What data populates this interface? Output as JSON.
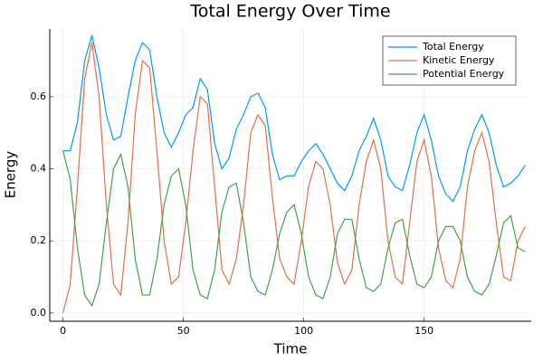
{
  "chart_data": {
    "type": "line",
    "title": "Total Energy Over Time",
    "x_label": "Time",
    "y_label": "Energy",
    "x": [
      0,
      3,
      6,
      9,
      12,
      15,
      18,
      21,
      24,
      27,
      30,
      33,
      36,
      39,
      42,
      45,
      48,
      51,
      54,
      57,
      60,
      63,
      66,
      69,
      72,
      75,
      78,
      81,
      84,
      87,
      90,
      93,
      96,
      99,
      102,
      105,
      108,
      111,
      114,
      117,
      120,
      123,
      126,
      129,
      132,
      135,
      138,
      141,
      144,
      147,
      150,
      153,
      156,
      159,
      162,
      165,
      168,
      171,
      174,
      177,
      180,
      183,
      186,
      189,
      192
    ],
    "series": [
      {
        "name": "Total Energy",
        "color": "#009afa",
        "values": [
          0.45,
          0.45,
          0.53,
          0.7,
          0.77,
          0.68,
          0.55,
          0.48,
          0.49,
          0.6,
          0.7,
          0.75,
          0.73,
          0.6,
          0.5,
          0.46,
          0.5,
          0.55,
          0.57,
          0.65,
          0.62,
          0.47,
          0.4,
          0.43,
          0.51,
          0.55,
          0.6,
          0.61,
          0.57,
          0.44,
          0.37,
          0.38,
          0.38,
          0.42,
          0.45,
          0.47,
          0.44,
          0.4,
          0.36,
          0.34,
          0.38,
          0.45,
          0.49,
          0.54,
          0.48,
          0.38,
          0.35,
          0.34,
          0.41,
          0.5,
          0.55,
          0.48,
          0.38,
          0.33,
          0.31,
          0.35,
          0.45,
          0.51,
          0.55,
          0.5,
          0.41,
          0.35,
          0.36,
          0.38,
          0.41
        ]
      },
      {
        "name": "Kinetic Energy",
        "color": "#e36f47",
        "values": [
          0.0,
          0.08,
          0.35,
          0.65,
          0.75,
          0.6,
          0.3,
          0.08,
          0.05,
          0.25,
          0.55,
          0.7,
          0.68,
          0.45,
          0.2,
          0.08,
          0.1,
          0.25,
          0.45,
          0.6,
          0.58,
          0.35,
          0.12,
          0.08,
          0.15,
          0.3,
          0.5,
          0.55,
          0.52,
          0.32,
          0.15,
          0.1,
          0.08,
          0.2,
          0.35,
          0.42,
          0.4,
          0.3,
          0.14,
          0.08,
          0.12,
          0.3,
          0.42,
          0.48,
          0.4,
          0.2,
          0.1,
          0.08,
          0.25,
          0.42,
          0.48,
          0.38,
          0.18,
          0.09,
          0.07,
          0.15,
          0.35,
          0.45,
          0.5,
          0.42,
          0.25,
          0.1,
          0.09,
          0.2,
          0.24
        ]
      },
      {
        "name": "Potential Energy",
        "color": "#3ea44e",
        "values": [
          0.45,
          0.37,
          0.18,
          0.05,
          0.02,
          0.08,
          0.25,
          0.4,
          0.44,
          0.35,
          0.15,
          0.05,
          0.05,
          0.15,
          0.3,
          0.38,
          0.4,
          0.3,
          0.12,
          0.05,
          0.04,
          0.12,
          0.28,
          0.35,
          0.36,
          0.25,
          0.1,
          0.06,
          0.05,
          0.12,
          0.22,
          0.28,
          0.3,
          0.22,
          0.1,
          0.05,
          0.04,
          0.1,
          0.22,
          0.26,
          0.26,
          0.15,
          0.07,
          0.06,
          0.08,
          0.18,
          0.25,
          0.26,
          0.16,
          0.08,
          0.07,
          0.1,
          0.2,
          0.24,
          0.24,
          0.2,
          0.1,
          0.06,
          0.05,
          0.08,
          0.16,
          0.25,
          0.27,
          0.18,
          0.17
        ]
      }
    ],
    "xlim": [
      -5.5,
      194.5
    ],
    "xticks": [
      0,
      50,
      100,
      150
    ],
    "ylim": [
      -0.023,
      0.788
    ],
    "yticks": [
      {
        "value": 0,
        "label": "0.0"
      },
      0.2,
      0.4,
      0.6
    ],
    "grid": true,
    "legend": "top-right"
  }
}
